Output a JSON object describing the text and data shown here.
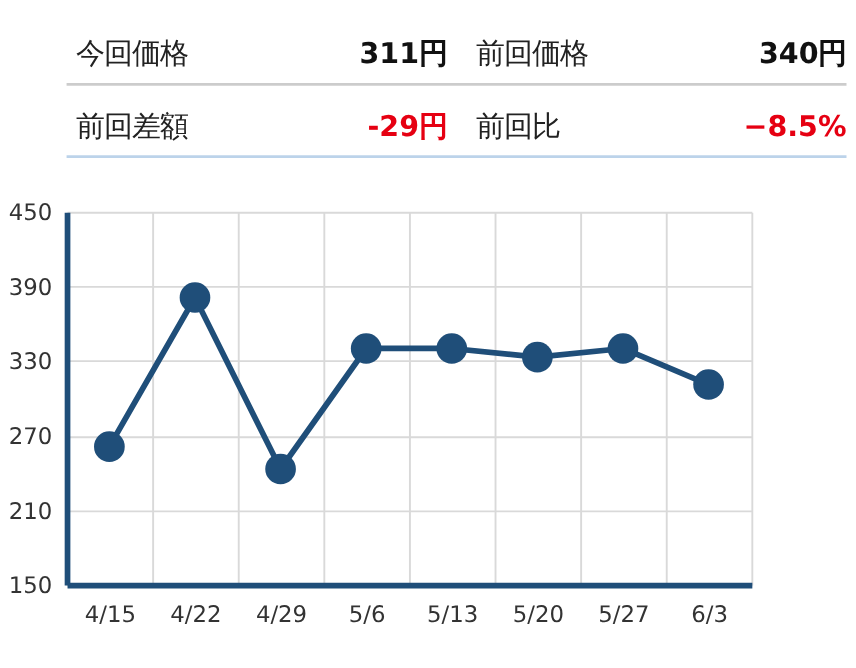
{
  "chart_data": [
    {
      "type": "other",
      "annotations": [
        "今回価格",
        "311円",
        "前回価格",
        "340円",
        "前回差額",
        "-29円",
        "前回比",
        "−8.5%"
      ]
    },
    {
      "type": "line",
      "categories": [
        "4/15",
        "4/22",
        "4/29",
        "5/6",
        "5/13",
        "5/20",
        "5/27",
        "6/3"
      ],
      "series": [
        {
          "color": "#1f4e79",
          "values": [
            261,
            381,
            243,
            340,
            340,
            333,
            340,
            311
          ]
        }
      ],
      "ylim": [
        150,
        450
      ],
      "yticks": [
        150,
        210,
        270,
        330,
        390,
        450
      ],
      "grid": true,
      "marker": "circle",
      "line_style": "solid"
    }
  ]
}
